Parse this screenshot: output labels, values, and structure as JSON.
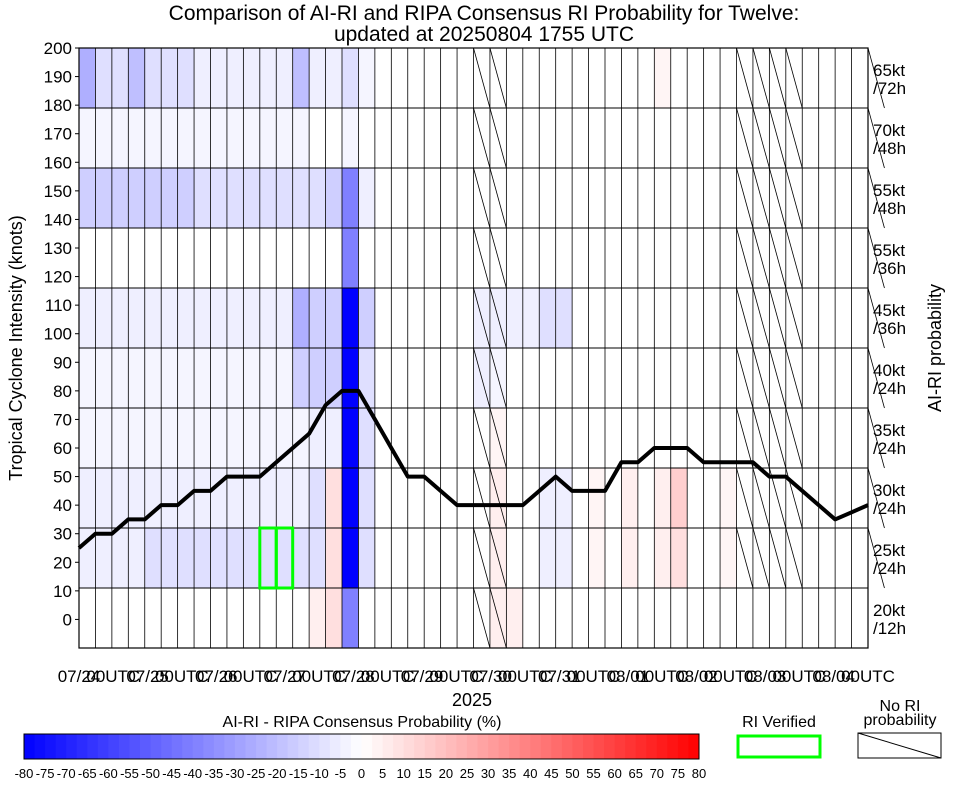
{
  "chart_data": {
    "type": "heatmap",
    "title": "Comparison of AI-RI and RIPA Consensus RI Probability for Twelve:",
    "subtitle": "updated at 20250804 1755 UTC",
    "ylabel": "Tropical Cyclone Intensity (knots)",
    "xlabel": "2025",
    "right_axis_label": "AI-RI probability",
    "ylim": [
      -10,
      200
    ],
    "y_ticks": [
      "0",
      "10",
      "20",
      "30",
      "40",
      "50",
      "60",
      "70",
      "80",
      "90",
      "100",
      "110",
      "120",
      "130",
      "140",
      "150",
      "160",
      "170",
      "180",
      "190",
      "200"
    ],
    "x_tick_labels": [
      "07/24",
      "00UTC",
      "07/25",
      "00UTC",
      "07/26",
      "00UTC",
      "07/27",
      "00UTC",
      "07/28",
      "00UTC",
      "07/29",
      "00UTC",
      "07/30",
      "00UTC",
      "07/31",
      "00UTC",
      "08/01",
      "00UTC",
      "08/02",
      "00UTC",
      "08/03",
      "00UTC",
      "08/04",
      "00UTC"
    ],
    "times": 49,
    "ri_thresholds": [
      {
        "label1": "20kt",
        "label2": "/12h"
      },
      {
        "label1": "25kt",
        "label2": "/24h"
      },
      {
        "label1": "30kt",
        "label2": "/24h"
      },
      {
        "label1": "35kt",
        "label2": "/24h"
      },
      {
        "label1": "40kt",
        "label2": "/24h"
      },
      {
        "label1": "45kt",
        "label2": "/36h"
      },
      {
        "label1": "55kt",
        "label2": "/36h"
      },
      {
        "label1": "55kt",
        "label2": "/48h"
      },
      {
        "label1": "70kt",
        "label2": "/48h"
      },
      {
        "label1": "65kt",
        "label2": "/72h"
      }
    ],
    "intensity_track": [
      25,
      30,
      30,
      35,
      35,
      40,
      40,
      45,
      45,
      50,
      50,
      50,
      55,
      60,
      65,
      75,
      80,
      80,
      70,
      60,
      50,
      50,
      45,
      40,
      40,
      40,
      40,
      40,
      45,
      50,
      45,
      45,
      45,
      55,
      55,
      60,
      60,
      60,
      55,
      55,
      55,
      55,
      50,
      50,
      45,
      40,
      35,
      37.5,
      40
    ],
    "difference_rows": [
      [
        0,
        0,
        0,
        0,
        0,
        0,
        0,
        0,
        0,
        0,
        0,
        0,
        0,
        0,
        5,
        10,
        -40,
        0,
        0,
        0,
        0,
        0,
        0,
        0,
        0,
        5,
        5,
        0,
        0,
        0,
        0,
        0,
        0,
        0,
        0,
        0,
        0,
        0,
        0,
        0,
        0,
        0,
        0,
        0,
        0,
        0,
        0,
        0,
        0
      ],
      [
        -5,
        -5,
        -5,
        -5,
        -10,
        -10,
        -10,
        -10,
        -10,
        -10,
        -10,
        -10,
        -10,
        -10,
        -10,
        10,
        -80,
        -10,
        0,
        0,
        0,
        0,
        0,
        0,
        0,
        5,
        0,
        0,
        -5,
        -5,
        0,
        3,
        0,
        5,
        0,
        5,
        10,
        0,
        0,
        3,
        0,
        0,
        0,
        0,
        0,
        0,
        0,
        0,
        0
      ],
      [
        -5,
        -5,
        -5,
        -5,
        -5,
        -5,
        -5,
        -5,
        -5,
        -5,
        -5,
        -5,
        -5,
        -5,
        -10,
        10,
        -80,
        -10,
        0,
        0,
        0,
        0,
        0,
        0,
        0,
        5,
        0,
        0,
        -5,
        -5,
        0,
        3,
        0,
        5,
        0,
        5,
        15,
        0,
        0,
        3,
        0,
        0,
        0,
        0,
        0,
        0,
        0,
        0,
        0
      ],
      [
        -3,
        -3,
        -3,
        -3,
        -3,
        -3,
        -3,
        -3,
        -3,
        -3,
        -3,
        -3,
        -3,
        -3,
        -5,
        -5,
        -80,
        -10,
        0,
        0,
        0,
        0,
        0,
        0,
        0,
        3,
        0,
        0,
        0,
        0,
        0,
        0,
        0,
        0,
        0,
        0,
        0,
        0,
        0,
        0,
        0,
        0,
        0,
        0,
        0,
        0,
        0,
        0,
        0
      ],
      [
        -3,
        -3,
        -3,
        -3,
        -3,
        -3,
        -3,
        -3,
        -3,
        -3,
        -3,
        -3,
        -3,
        -15,
        -15,
        -15,
        -80,
        -10,
        0,
        0,
        0,
        0,
        0,
        0,
        -5,
        -3,
        0,
        0,
        0,
        0,
        0,
        0,
        0,
        0,
        0,
        0,
        0,
        0,
        0,
        0,
        0,
        0,
        0,
        0,
        0,
        0,
        0,
        0,
        0
      ],
      [
        -5,
        -5,
        -5,
        -5,
        -5,
        -5,
        -5,
        -5,
        -5,
        -5,
        -5,
        -5,
        -5,
        -25,
        -15,
        -15,
        -80,
        -15,
        0,
        0,
        0,
        0,
        0,
        0,
        -5,
        -5,
        -5,
        -5,
        -10,
        -10,
        0,
        0,
        0,
        0,
        0,
        0,
        0,
        0,
        0,
        0,
        0,
        0,
        0,
        0,
        0,
        0,
        0,
        0,
        0
      ],
      [
        0,
        0,
        0,
        0,
        0,
        0,
        0,
        0,
        0,
        0,
        0,
        0,
        0,
        0,
        0,
        0,
        -40,
        0,
        0,
        0,
        0,
        0,
        0,
        0,
        0,
        0,
        0,
        0,
        0,
        0,
        0,
        0,
        0,
        0,
        0,
        0,
        0,
        0,
        0,
        0,
        0,
        0,
        0,
        0,
        0,
        0,
        0,
        0,
        0
      ],
      [
        -15,
        -15,
        -15,
        -15,
        -15,
        -15,
        -15,
        -10,
        -10,
        -10,
        -10,
        -10,
        -10,
        -10,
        -10,
        -15,
        -40,
        -5,
        0,
        0,
        0,
        0,
        0,
        0,
        0,
        0,
        0,
        0,
        0,
        0,
        0,
        0,
        0,
        0,
        0,
        0,
        0,
        0,
        0,
        0,
        0,
        0,
        0,
        0,
        0,
        0,
        0,
        0,
        0
      ],
      [
        -3,
        -3,
        -3,
        -3,
        -3,
        -3,
        -3,
        -3,
        -3,
        -3,
        -3,
        -3,
        -3,
        -3,
        0,
        0,
        -3,
        0,
        0,
        0,
        0,
        0,
        0,
        0,
        0,
        0,
        0,
        0,
        0,
        0,
        0,
        0,
        0,
        0,
        0,
        0,
        0,
        0,
        0,
        0,
        0,
        0,
        0,
        0,
        0,
        0,
        0,
        0,
        0
      ],
      [
        -25,
        -10,
        -10,
        -20,
        -10,
        -10,
        -10,
        -5,
        -5,
        -5,
        -5,
        -5,
        -5,
        -20,
        -5,
        -5,
        -10,
        -3,
        0,
        0,
        0,
        0,
        0,
        0,
        0,
        0,
        0,
        0,
        0,
        0,
        0,
        0,
        0,
        0,
        0,
        3,
        0,
        0,
        0,
        0,
        0,
        0,
        0,
        0,
        0,
        0,
        0,
        0,
        0
      ]
    ],
    "no_ri_rows": [
      [
        24,
        25
      ],
      [
        24,
        25,
        40,
        41,
        42,
        43,
        48
      ],
      [
        24,
        25,
        40,
        41,
        42,
        43,
        48
      ],
      [
        24,
        25,
        40,
        41,
        42,
        43,
        48
      ],
      [
        24,
        25,
        40,
        41,
        42,
        43,
        48
      ],
      [
        24,
        25,
        40,
        41,
        42,
        43,
        48
      ],
      [
        24,
        25,
        40,
        41,
        42,
        43,
        48
      ],
      [
        24,
        25,
        40,
        41,
        42,
        43,
        48
      ],
      [
        24,
        25,
        40,
        41,
        42,
        43,
        48
      ],
      [
        24,
        25,
        40,
        41,
        42,
        43,
        48
      ]
    ],
    "ri_verified": [
      {
        "row": 1,
        "time": 11
      },
      {
        "row": 1,
        "time": 12
      }
    ],
    "colorbar": {
      "title": "AI-RI - RIPA Consensus Probability (%)",
      "min": -80,
      "max": 80,
      "tick_labels": [
        "-80",
        "-75",
        "-70",
        "-65",
        "-60",
        "-55",
        "-50",
        "-45",
        "-40",
        "-35",
        "-30",
        "-25",
        "-20",
        "-15",
        "-10",
        "-5",
        "0",
        "5",
        "10",
        "15",
        "20",
        "25",
        "30",
        "35",
        "40",
        "45",
        "50",
        "55",
        "60",
        "65",
        "70",
        "75",
        "80"
      ],
      "neg_color": "#0000ff",
      "pos_color": "#ff0000"
    },
    "legend": {
      "ri_verified_label": "RI Verified",
      "ri_verified_color": "#00ff00",
      "no_ri_label1": "No RI",
      "no_ri_label2": "probability"
    }
  }
}
